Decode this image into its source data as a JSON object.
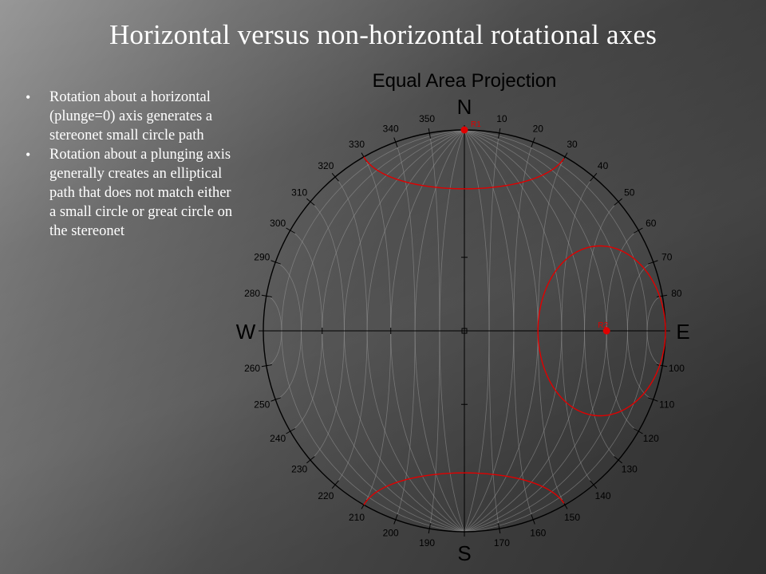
{
  "title": "Horizontal versus non-horizontal rotational axes",
  "bullets": [
    "Rotation about a horizontal (plunge=0) axis generates a stereonet small circle path",
    "Rotation about a plunging axis generally creates an elliptical path that does not match either a small circle or great circle on the stereonet"
  ],
  "stereonet": {
    "title": "Equal Area Projection",
    "compass": {
      "n": "N",
      "e": "E",
      "s": "S",
      "w": "W"
    },
    "degree_labels": [
      "10",
      "20",
      "30",
      "40",
      "50",
      "60",
      "70",
      "80",
      "100",
      "110",
      "120",
      "130",
      "140",
      "150",
      "160",
      "170",
      "190",
      "200",
      "210",
      "220",
      "230",
      "240",
      "250",
      "260",
      "280",
      "290",
      "300",
      "310",
      "320",
      "330",
      "340",
      "350"
    ],
    "axes": [
      {
        "label": "R1",
        "trend": 0,
        "plunge": 0,
        "color": "#e00000"
      },
      {
        "label": "R2",
        "trend": 90,
        "plunge": 30,
        "color": "#e00000"
      }
    ]
  }
}
